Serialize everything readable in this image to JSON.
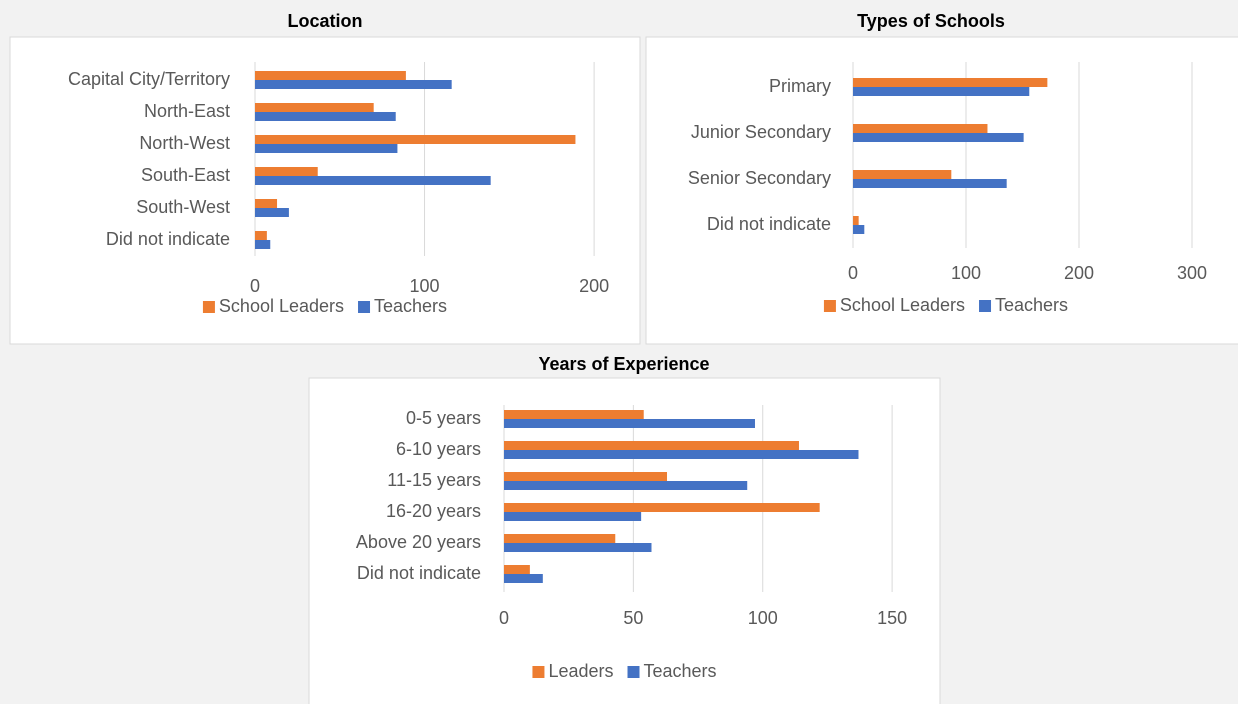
{
  "chart_data": [
    {
      "type": "barh",
      "title": "Location",
      "categories": [
        "Capital City/Territory",
        "North-East",
        "North-West",
        "South-East",
        "South-West",
        "Did not indicate"
      ],
      "series": [
        {
          "name": "School Leaders",
          "color": "#ed7d31",
          "values": [
            89,
            70,
            189,
            37,
            13,
            7
          ]
        },
        {
          "name": "Teachers",
          "color": "#4472c4",
          "values": [
            116,
            83,
            84,
            139,
            20,
            9
          ]
        }
      ],
      "xlim": [
        0,
        220
      ],
      "xticks": [
        0,
        100,
        200
      ],
      "grid": true,
      "legend": "bottom"
    },
    {
      "type": "barh",
      "title": "Types of Schools",
      "categories": [
        "Primary",
        "Junior Secondary",
        "Senior Secondary",
        "Did not indicate"
      ],
      "series": [
        {
          "name": "School Leaders",
          "color": "#ed7d31",
          "values": [
            172,
            119,
            87,
            5
          ]
        },
        {
          "name": "Teachers",
          "color": "#4472c4",
          "values": [
            156,
            151,
            136,
            10
          ]
        }
      ],
      "xlim": [
        0,
        300
      ],
      "xticks": [
        0,
        100,
        200,
        300
      ],
      "grid": true,
      "legend": "bottom"
    },
    {
      "type": "barh",
      "title": "Years of Experience",
      "categories": [
        "0-5 years",
        "6-10 years",
        "11-15 years",
        "16-20 years",
        "Above 20 years",
        "Did not indicate"
      ],
      "series": [
        {
          "name": "Leaders",
          "color": "#ed7d31",
          "values": [
            54,
            114,
            63,
            122,
            43,
            10
          ]
        },
        {
          "name": "Teachers",
          "color": "#4472c4",
          "values": [
            97,
            137,
            94,
            53,
            57,
            15
          ]
        }
      ],
      "xlim": [
        0,
        160
      ],
      "xticks": [
        0,
        50,
        100,
        150
      ],
      "grid": true,
      "legend": "bottom"
    }
  ]
}
